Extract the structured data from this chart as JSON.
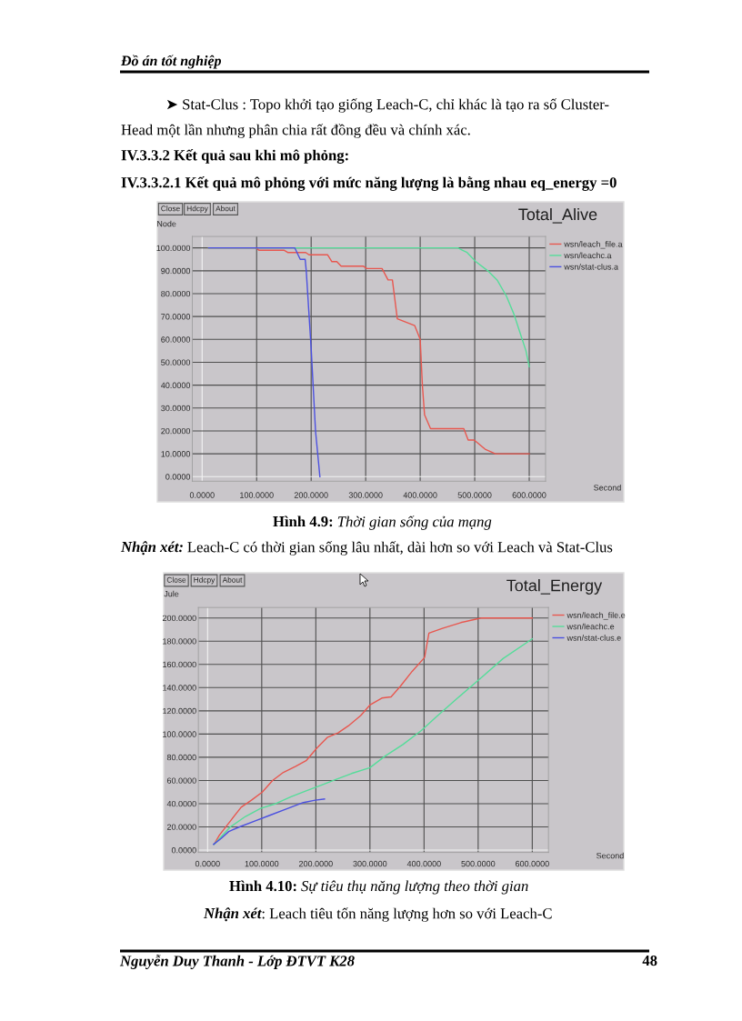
{
  "chart_data": [
    {
      "type": "line",
      "title": "Total_Alive",
      "xlabel": "Second",
      "ylabel": "Node",
      "xlim": [
        -18,
        630
      ],
      "ylim": [
        -2,
        105
      ],
      "xticks": [
        {
          "value": 0,
          "label": "0.0000"
        },
        {
          "value": 100,
          "label": "100.0000"
        },
        {
          "value": 200,
          "label": "200.0000"
        },
        {
          "value": 300,
          "label": "300.0000"
        },
        {
          "value": 400,
          "label": "400.0000"
        },
        {
          "value": 500,
          "label": "500.0000"
        },
        {
          "value": 600,
          "label": "600.0000"
        }
      ],
      "yticks": [
        {
          "value": 0,
          "label": "0.0000"
        },
        {
          "value": 10,
          "label": "10.0000"
        },
        {
          "value": 20,
          "label": "20.0000"
        },
        {
          "value": 30,
          "label": "30.0000"
        },
        {
          "value": 40,
          "label": "40.0000"
        },
        {
          "value": 50,
          "label": "50.0000"
        },
        {
          "value": 60,
          "label": "60.0000"
        },
        {
          "value": 70,
          "label": "70.0000"
        },
        {
          "value": 80,
          "label": "80.0000"
        },
        {
          "value": 90,
          "label": "90.0000"
        },
        {
          "value": 100,
          "label": "100.0000"
        }
      ],
      "grid": true,
      "legend": "top right",
      "series": [
        {
          "name": "wsn/leach_file.a",
          "color": "#e8574f",
          "x": [
            12,
            100,
            104,
            150,
            157,
            190,
            196,
            230,
            238,
            247,
            255,
            296,
            302,
            330,
            341,
            349,
            358,
            390,
            400,
            404,
            408,
            419,
            480,
            488,
            499,
            519,
            538,
            600
          ],
          "values": [
            100,
            100,
            99,
            99,
            98,
            98,
            97,
            97,
            94,
            94,
            92,
            92,
            91,
            91,
            86,
            86,
            69,
            66,
            60,
            40,
            27,
            21,
            21,
            16,
            16,
            12,
            10,
            10
          ]
        },
        {
          "name": "wsn/leachc.a",
          "color": "#55dd9a",
          "x": [
            12,
            469,
            486,
            502,
            524,
            541,
            558,
            572,
            583,
            594,
            600
          ],
          "values": [
            100,
            100,
            98,
            94,
            90,
            86,
            79,
            71,
            63,
            55,
            48
          ]
        },
        {
          "name": "wsn/stat-clus.a",
          "color": "#4b50e0",
          "x": [
            12,
            170,
            180,
            189,
            191,
            200,
            208,
            216
          ],
          "values": [
            100,
            100,
            95,
            95,
            90,
            56,
            20,
            0
          ]
        }
      ],
      "annotations": [
        "Đồ án tốt nghiệp",
        "➤ Stat-Clus : Topo khởi tạo giống Leach-C, chỉ khác là tạo ra số Cluster-",
        "Head một lần nhưng phân chia rất đồng đều và chính xác.",
        "IV.3.3.2 Kết quả sau khi mô phỏng:",
        "IV.3.3.2.1 Kết quả mô phỏng với mức năng lượng là bằng nhau eq_energy =0",
        "Close",
        "Hdcpy",
        "About",
        "Hình 4.9:",
        "Thời gian sống của mạng",
        "Nhận xét:",
        "Leach-C có thời gian sống lâu nhất, dài hơn so với Leach và Stat-Clus"
      ]
    },
    {
      "type": "line",
      "title": "Total_Energy",
      "xlabel": "Second",
      "ylabel": "Jule",
      "xlim": [
        -17,
        630
      ],
      "ylim": [
        -2,
        209
      ],
      "xticks": [
        {
          "value": 0,
          "label": "0.0000"
        },
        {
          "value": 100,
          "label": "100.0000"
        },
        {
          "value": 200,
          "label": "200.0000"
        },
        {
          "value": 300,
          "label": "300.0000"
        },
        {
          "value": 400,
          "label": "400.0000"
        },
        {
          "value": 500,
          "label": "500.0000"
        },
        {
          "value": 600,
          "label": "600.0000"
        }
      ],
      "yticks": [
        {
          "value": 0,
          "label": "0.0000"
        },
        {
          "value": 20,
          "label": "20.0000"
        },
        {
          "value": 40,
          "label": "40.0000"
        },
        {
          "value": 60,
          "label": "60.0000"
        },
        {
          "value": 80,
          "label": "80.0000"
        },
        {
          "value": 100,
          "label": "100.0000"
        },
        {
          "value": 120,
          "label": "120.0000"
        },
        {
          "value": 140,
          "label": "140.0000"
        },
        {
          "value": 160,
          "label": "160.0000"
        },
        {
          "value": 180,
          "label": "180.0000"
        },
        {
          "value": 200,
          "label": "200.0000"
        }
      ],
      "grid": true,
      "legend": "top right",
      "series": [
        {
          "name": "wsn/leach_file.e",
          "color": "#e8574f",
          "x": [
            12,
            22,
            42,
            62,
            81,
            101,
            120,
            140,
            162,
            182,
            202,
            221,
            241,
            260,
            283,
            300,
            322,
            339,
            356,
            378,
            401,
            409,
            434,
            468,
            496,
            507,
            600
          ],
          "values": [
            5,
            13,
            25,
            37,
            43,
            50,
            60,
            67,
            72,
            77,
            88,
            97,
            101,
            107,
            116,
            125,
            131,
            132,
            141,
            154,
            166,
            187,
            191,
            196,
            199,
            200,
            200
          ]
        },
        {
          "name": "wsn/leachc.e",
          "color": "#55dd9a",
          "x": [
            12,
            42,
            70,
            98,
            126,
            154,
            182,
            210,
            238,
            266,
            300,
            328,
            361,
            395,
            423,
            462,
            507,
            546,
            600
          ],
          "values": [
            5,
            20,
            29,
            36,
            40,
            46,
            51,
            56,
            61,
            66,
            71,
            81,
            91,
            103,
            115,
            131,
            149,
            165,
            182
          ]
        },
        {
          "name": "wsn/stat-clus.e",
          "color": "#4b50e0",
          "x": [
            11,
            25,
            39,
            59,
            87,
            115,
            143,
            177,
            199,
            216
          ],
          "values": [
            5,
            10,
            16,
            20,
            25,
            30,
            35,
            41,
            43,
            44
          ]
        }
      ],
      "annotations": [
        "Close",
        "Hdcpy",
        "About",
        "Hình 4.10:",
        "Sự tiêu thụ năng lượng theo thời gian",
        "Nhận xét",
        ": Leach tiêu tốn năng lượng hơn so với Leach-C",
        "Nguyễn Duy Thanh - Lớp ĐTVT K28",
        "48"
      ]
    }
  ]
}
